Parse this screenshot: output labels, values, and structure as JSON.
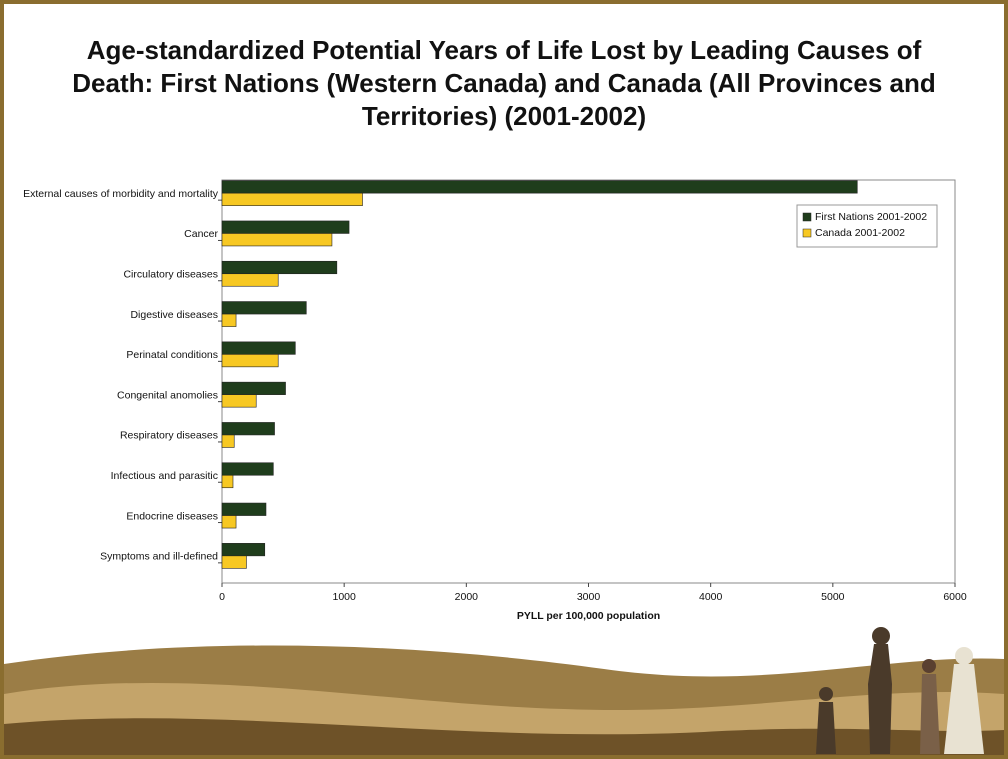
{
  "chart_data": {
    "type": "hbar",
    "title": "Age-standardized Potential Years of Life Lost by Leading Causes of Death: First Nations (Western Canada) and Canada (All Provinces and Territories) (2001-2002)",
    "categories": [
      "External causes of morbidity and mortality",
      "Cancer",
      "Circulatory diseases",
      "Digestive diseases",
      "Perinatal conditions",
      "Congenital anomolies",
      "Respiratory diseases",
      "Infectious and parasitic",
      "Endocrine diseases",
      "Symptoms and ill-defined"
    ],
    "series": [
      {
        "name": "First Nations 2001-2002",
        "color": "#1f3d1c",
        "values": [
          5200,
          1040,
          940,
          690,
          600,
          520,
          430,
          420,
          360,
          350
        ]
      },
      {
        "name": "Canada 2001-2002",
        "color": "#f7c823",
        "values": [
          1150,
          900,
          460,
          115,
          460,
          280,
          100,
          90,
          115,
          200
        ]
      }
    ],
    "xlabel": "PYLL per 100,000 population",
    "xlim": [
      0,
      6000
    ],
    "xticks": [
      0,
      1000,
      2000,
      3000,
      4000,
      5000,
      6000
    ],
    "legend": "top-right"
  }
}
